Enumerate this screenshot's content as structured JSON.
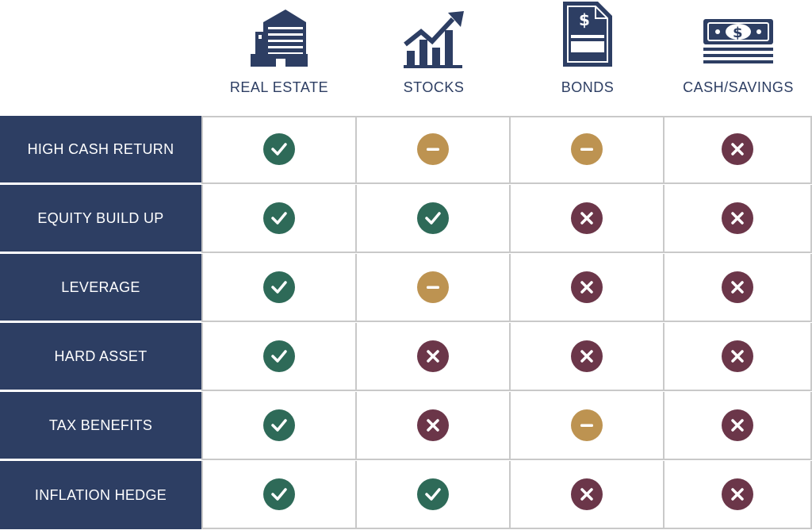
{
  "colors": {
    "navy": "#2d3e63",
    "yes": "#2e6a58",
    "partial": "#bd9351",
    "no": "#6b3649",
    "grid": "#c9c9c9"
  },
  "columns": [
    {
      "label": "REAL ESTATE",
      "icon": "building-icon"
    },
    {
      "label": "STOCKS",
      "icon": "rising-chart-icon"
    },
    {
      "label": "BONDS",
      "icon": "bond-certificate-icon"
    },
    {
      "label": "CASH/SAVINGS",
      "icon": "cash-stack-icon"
    }
  ],
  "rows": [
    {
      "label": "HIGH CASH RETURN",
      "values": [
        "yes",
        "partial",
        "partial",
        "no"
      ]
    },
    {
      "label": "EQUITY BUILD UP",
      "values": [
        "yes",
        "yes",
        "no",
        "no"
      ]
    },
    {
      "label": "LEVERAGE",
      "values": [
        "yes",
        "partial",
        "no",
        "no"
      ]
    },
    {
      "label": "HARD ASSET",
      "values": [
        "yes",
        "no",
        "no",
        "no"
      ]
    },
    {
      "label": "TAX BENEFITS",
      "values": [
        "yes",
        "no",
        "partial",
        "no"
      ]
    },
    {
      "label": "INFLATION HEDGE",
      "values": [
        "yes",
        "yes",
        "no",
        "no"
      ]
    }
  ]
}
